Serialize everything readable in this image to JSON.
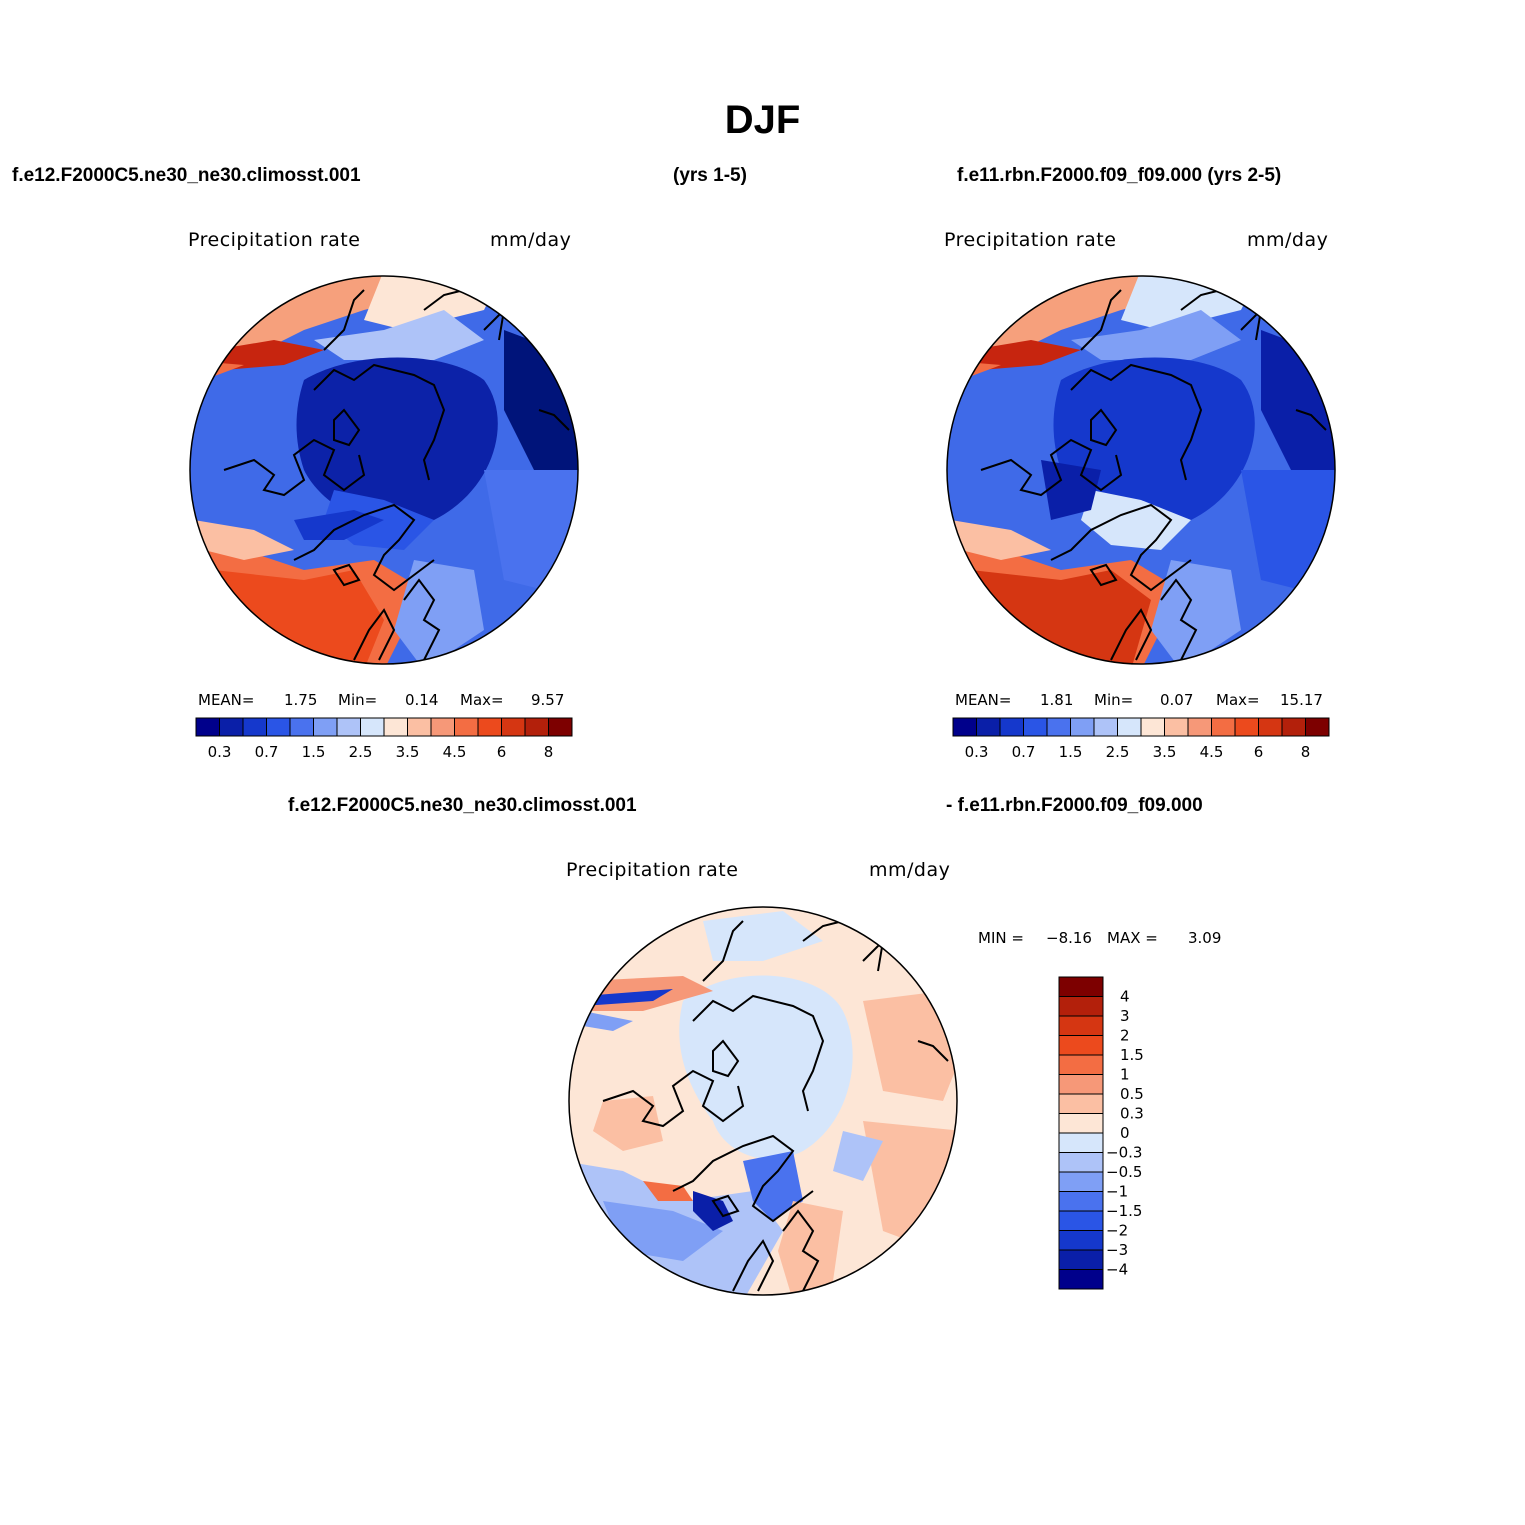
{
  "figure": {
    "title": "DJF",
    "case1_label": "f.e12.F2000C5.ne30_ne30.climosst.001",
    "case1_years": "(yrs 1-5)",
    "case2_label": "f.e11.rbn.F2000.f09_f09.000 (yrs 2-5)",
    "diff_case1": "f.e12.F2000C5.ne30_ne30.climosst.001",
    "diff_case2": "- f.e11.rbn.F2000.f09_f09.000"
  },
  "panels": [
    {
      "variable": "Precipitation  rate",
      "units": "mm/day",
      "mean_label": "MEAN=",
      "mean": "1.75",
      "min_label": "Min=",
      "min": "0.14",
      "max_label": "Max=",
      "max": "9.57"
    },
    {
      "variable": "Precipitation  rate",
      "units": "mm/day",
      "mean_label": "MEAN=",
      "mean": "1.81",
      "min_label": "Min=",
      "min": "0.07",
      "max_label": "Max=",
      "max": "15.17"
    },
    {
      "variable": "Precipitation  rate",
      "units": "mm/day",
      "min_label": "MIN =",
      "min": "−8.16",
      "max_label": "MAX =",
      "max": "3.09"
    }
  ],
  "colorbar_main": {
    "colors": [
      "#00008b",
      "#0a1fa8",
      "#1538cc",
      "#2a55e6",
      "#4a72ee",
      "#7f9ff5",
      "#aec3f8",
      "#d6e6fb",
      "#fde6d6",
      "#fbbfa3",
      "#f69878",
      "#f36d43",
      "#ec4a1d",
      "#d53612",
      "#b3200b",
      "#7d0000"
    ],
    "ticks": [
      "0.3",
      "0.7",
      "1.5",
      "2.5",
      "3.5",
      "4.5",
      "6",
      "8"
    ]
  },
  "colorbar_diff": {
    "colors": [
      "#00008b",
      "#0a1fa8",
      "#1538cc",
      "#2a55e6",
      "#4a72ee",
      "#7f9ff5",
      "#aec3f8",
      "#d6e6fb",
      "#fde6d6",
      "#fbbfa3",
      "#f69878",
      "#f36d43",
      "#ec4a1d",
      "#d53612",
      "#b3200b",
      "#7d0000"
    ],
    "ticks": [
      "4",
      "3",
      "2",
      "1.5",
      "1",
      "0.5",
      "0.3",
      "0",
      "−0.3",
      "−0.5",
      "−1",
      "−1.5",
      "−2",
      "−3",
      "−4"
    ]
  }
}
